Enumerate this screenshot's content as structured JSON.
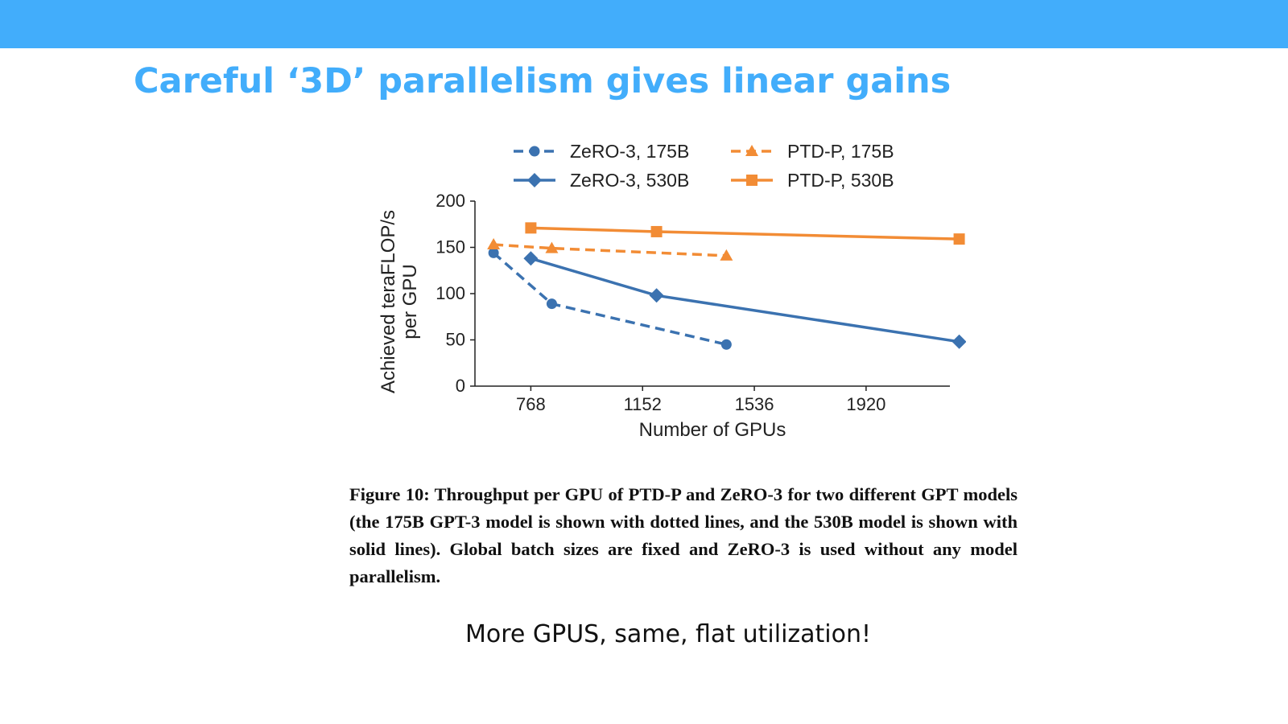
{
  "slide": {
    "title": "Careful ‘3D’ parallelism gives linear gains",
    "caption": "Figure 10: Throughput per GPU of PTD-P and ZeRO-3 for two different GPT models (the 175B GPT-3 model is shown with dotted lines, and the 530B model is shown with solid lines). Global batch sizes are fixed and ZeRO-3 is used without any model parallelism.",
    "footer": "More GPUS, same, flat utilization!"
  },
  "colors": {
    "accent": "#42adfb",
    "zero3": "#3b72b0",
    "ptdp": "#f28c35"
  },
  "chart_data": {
    "type": "line",
    "title": "",
    "xlabel": "Number of GPUs",
    "ylabel": "Achieved teraFLOP/s per GPU",
    "xlim": [
      576,
      2208
    ],
    "ylim": [
      0,
      200
    ],
    "xticks": [
      768,
      1152,
      1536,
      1920
    ],
    "yticks": [
      0,
      50,
      100,
      150,
      200
    ],
    "legend_position": "top",
    "series": [
      {
        "name": "ZeRO-3, 175B",
        "color": "#3b72b0",
        "dash": "dashed",
        "marker": "circle",
        "points": [
          [
            640,
            144
          ],
          [
            840,
            89
          ],
          [
            1440,
            45
          ]
        ]
      },
      {
        "name": "ZeRO-3, 530B",
        "color": "#3b72b0",
        "dash": "solid",
        "marker": "diamond",
        "points": [
          [
            768,
            138
          ],
          [
            1200,
            98
          ],
          [
            2240,
            48
          ]
        ]
      },
      {
        "name": "PTD-P, 175B",
        "color": "#f28c35",
        "dash": "dashed",
        "marker": "triangle",
        "points": [
          [
            640,
            153
          ],
          [
            840,
            149
          ],
          [
            1440,
            141
          ]
        ]
      },
      {
        "name": "PTD-P, 530B",
        "color": "#f28c35",
        "dash": "solid",
        "marker": "square",
        "points": [
          [
            768,
            171
          ],
          [
            1200,
            167
          ],
          [
            2240,
            159
          ]
        ]
      }
    ]
  }
}
